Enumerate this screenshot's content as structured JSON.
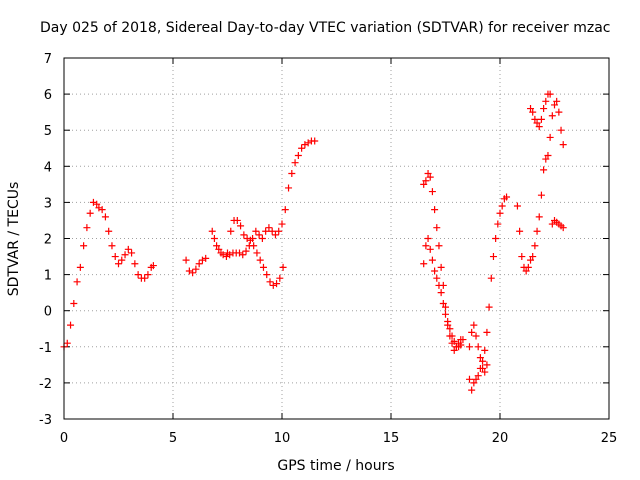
{
  "chart_data": {
    "type": "scatter",
    "title": "Day 025 of 2018, Sidereal Day-to-day VTEC variation (SDTVAR) for receiver mzac",
    "xlabel": "GPS time / hours",
    "ylabel": "SDTVAR / TECUs",
    "xlim": [
      0,
      25
    ],
    "ylim": [
      -3,
      7
    ],
    "xticks": [
      0,
      5,
      10,
      15,
      20,
      25
    ],
    "yticks": [
      -3,
      -2,
      -1,
      0,
      1,
      2,
      3,
      4,
      5,
      6,
      7
    ],
    "grid": true,
    "marker": "+",
    "series": [
      {
        "name": "SDTVAR",
        "color": "#ff0000",
        "x": [
          0.0,
          0.15,
          0.3,
          0.45,
          0.6,
          0.75,
          0.9,
          1.05,
          1.2,
          1.35,
          1.5,
          1.6,
          1.75,
          1.9,
          2.05,
          2.2,
          2.35,
          2.5,
          2.65,
          2.8,
          2.95,
          3.1,
          3.25,
          3.4,
          3.55,
          3.7,
          3.85,
          4.0,
          4.1,
          5.6,
          5.75,
          5.9,
          6.05,
          6.2,
          6.35,
          6.5,
          6.8,
          6.9,
          7.0,
          7.1,
          7.2,
          7.3,
          7.45,
          7.6,
          7.75,
          7.9,
          8.05,
          8.2,
          8.35,
          8.5,
          8.65,
          8.8,
          8.95,
          9.1,
          9.25,
          9.4,
          9.55,
          9.7,
          9.85,
          10.0,
          10.15,
          10.3,
          10.45,
          10.6,
          10.75,
          10.9,
          11.05,
          11.2,
          11.35,
          11.5,
          7.5,
          7.65,
          7.8,
          7.95,
          8.1,
          8.25,
          8.4,
          8.55,
          8.7,
          8.85,
          9.0,
          9.15,
          9.3,
          9.45,
          9.6,
          9.75,
          9.9,
          10.05,
          16.5,
          16.6,
          16.7,
          16.8,
          16.9,
          17.0,
          17.1,
          17.2,
          17.3,
          17.4,
          17.5,
          17.6,
          17.7,
          17.8,
          17.9,
          18.0,
          18.1,
          18.2,
          18.3,
          16.5,
          16.6,
          16.7,
          16.8,
          16.9,
          17.0,
          17.1,
          17.2,
          17.3,
          17.4,
          17.5,
          17.6,
          17.7,
          17.8,
          17.9,
          18.0,
          18.1,
          18.2,
          18.6,
          18.7,
          18.8,
          18.9,
          19.0,
          19.1,
          19.2,
          19.3,
          19.4,
          19.5,
          19.6,
          19.7,
          19.8,
          19.9,
          20.0,
          20.1,
          20.2,
          20.3,
          18.6,
          18.7,
          18.8,
          18.9,
          19.0,
          19.1,
          19.2,
          19.3,
          19.4,
          20.8,
          20.9,
          21.0,
          21.1,
          21.2,
          21.3,
          21.4,
          21.5,
          21.6,
          21.7,
          21.8,
          21.9,
          22.0,
          22.1,
          22.2,
          22.3,
          22.4,
          22.5,
          22.6,
          22.7,
          22.8,
          22.9,
          21.4,
          21.5,
          21.6,
          21.7,
          21.8,
          21.9,
          22.0,
          22.1,
          22.2,
          22.3,
          22.4,
          22.5,
          22.6,
          22.7,
          22.8,
          22.9
        ],
        "y": [
          -1.0,
          -0.9,
          -0.4,
          0.2,
          0.8,
          1.2,
          1.8,
          2.3,
          2.7,
          3.0,
          2.95,
          2.85,
          2.8,
          2.6,
          2.2,
          1.8,
          1.5,
          1.3,
          1.4,
          1.55,
          1.7,
          1.6,
          1.3,
          1.0,
          0.9,
          0.9,
          1.0,
          1.2,
          1.25,
          1.4,
          1.1,
          1.05,
          1.15,
          1.3,
          1.4,
          1.45,
          2.2,
          2.0,
          1.8,
          1.7,
          1.6,
          1.55,
          1.5,
          1.55,
          1.6,
          1.6,
          1.6,
          1.55,
          1.65,
          1.8,
          2.0,
          2.2,
          2.1,
          2.0,
          2.2,
          2.3,
          2.2,
          2.1,
          2.2,
          2.4,
          2.8,
          3.4,
          3.8,
          4.1,
          4.3,
          4.5,
          4.6,
          4.65,
          4.7,
          4.7,
          1.6,
          2.2,
          2.5,
          2.5,
          2.35,
          2.1,
          2.0,
          1.95,
          1.8,
          1.6,
          1.4,
          1.2,
          1.0,
          0.8,
          0.7,
          0.75,
          0.9,
          1.2,
          3.5,
          3.6,
          3.8,
          3.7,
          3.3,
          2.8,
          2.3,
          1.8,
          1.2,
          0.7,
          0.1,
          -0.3,
          -0.5,
          -0.7,
          -0.85,
          -1.0,
          -1.0,
          -0.95,
          -0.8,
          1.3,
          1.8,
          2.0,
          1.7,
          1.4,
          1.1,
          0.9,
          0.7,
          0.5,
          0.2,
          -0.1,
          -0.4,
          -0.7,
          -0.9,
          -1.1,
          -1.0,
          -0.9,
          -0.8,
          -1.0,
          -0.6,
          -0.4,
          -0.7,
          -1.0,
          -1.3,
          -1.4,
          -1.1,
          -0.6,
          0.1,
          0.9,
          1.5,
          2.0,
          2.4,
          2.7,
          2.9,
          3.1,
          3.15,
          -1.9,
          -2.2,
          -2.0,
          -1.9,
          -1.8,
          -1.6,
          -1.6,
          -1.7,
          -1.5,
          2.9,
          2.2,
          1.5,
          1.2,
          1.1,
          1.2,
          1.4,
          1.5,
          1.8,
          2.2,
          2.6,
          3.2,
          3.9,
          4.2,
          4.3,
          4.8,
          5.4,
          5.7,
          5.8,
          5.5,
          5.0,
          4.6,
          5.6,
          5.5,
          5.3,
          5.2,
          5.1,
          5.3,
          5.6,
          5.8,
          6.0,
          6.0,
          2.4,
          2.5,
          2.45,
          2.4,
          2.35,
          2.3
        ]
      }
    ]
  }
}
